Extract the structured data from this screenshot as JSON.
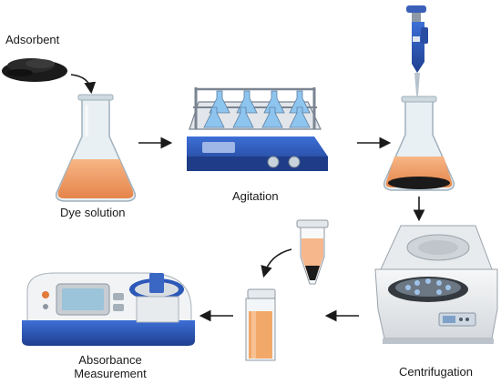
{
  "labels": {
    "adsorbent": "Adsorbent",
    "dye_solution": "Dye solution",
    "agitation": "Agitation",
    "centrifugation": "Centrifugation",
    "absorbance_line1": "Absorbance",
    "absorbance_line2": "Measurement"
  },
  "colors": {
    "dye": "#f4a66a",
    "dye_dark": "#e8874a",
    "glass": "#dfe8ee",
    "shaker_blue": "#2c58b8",
    "instrument_white": "#f1f3f5",
    "arrow": "#1a1a1a"
  },
  "icons": {
    "adsorbent_powder": "black-powder-pile-icon",
    "flask": "erlenmeyer-flask-icon",
    "shaker": "orbital-shaker-icon",
    "pipette": "micropipette-icon",
    "centrifuge": "centrifuge-icon",
    "tube": "centrifuge-tube-icon",
    "cuvette": "cuvette-icon",
    "spectrophotometer": "spectrophotometer-icon"
  }
}
